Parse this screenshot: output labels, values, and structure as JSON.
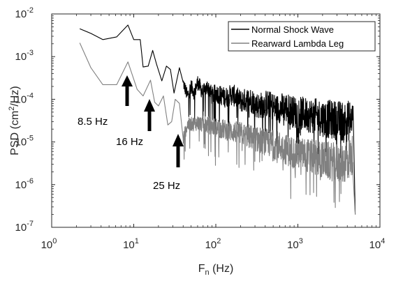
{
  "chart_data": {
    "type": "line",
    "xlabel_main": "F",
    "xlabel_sub": "n",
    "xlabel_tail": " (Hz)",
    "ylabel_main": "PSD (cm",
    "ylabel_sup": "2",
    "ylabel_tail": "/Hz)",
    "x_scale": "log",
    "y_scale": "log",
    "xlim": [
      1,
      10000
    ],
    "ylim": [
      1e-07,
      0.01
    ],
    "grid": false,
    "legend_position": "top-right",
    "x_ticks": [
      {
        "value": 1,
        "base": "10",
        "exp": "0"
      },
      {
        "value": 10,
        "base": "10",
        "exp": "1"
      },
      {
        "value": 100,
        "base": "10",
        "exp": "2"
      },
      {
        "value": 1000,
        "base": "10",
        "exp": "3"
      },
      {
        "value": 10000,
        "base": "10",
        "exp": "4"
      }
    ],
    "y_ticks": [
      {
        "value": 1e-07,
        "base": "10",
        "exp": "-7"
      },
      {
        "value": 1e-06,
        "base": "10",
        "exp": "-6"
      },
      {
        "value": 1e-05,
        "base": "10",
        "exp": "-5"
      },
      {
        "value": 0.0001,
        "base": "10",
        "exp": "-4"
      },
      {
        "value": 0.001,
        "base": "10",
        "exp": "-3"
      },
      {
        "value": 0.01,
        "base": "10",
        "exp": "-2"
      }
    ],
    "series": [
      {
        "name": "Normal Shock Wave",
        "color": "#000000",
        "points": [
          [
            2.2,
            0.0045
          ],
          [
            3,
            0.0035
          ],
          [
            4.2,
            0.0025
          ],
          [
            6.2,
            0.0029
          ],
          [
            8.5,
            0.0055
          ],
          [
            10,
            0.0025
          ],
          [
            12,
            0.0025
          ],
          [
            13,
            0.00057
          ],
          [
            15,
            0.0006
          ],
          [
            17,
            0.0014
          ],
          [
            19,
            0.00065
          ],
          [
            22,
            0.00027
          ],
          [
            25,
            0.0006
          ],
          [
            28,
            0.0005
          ],
          [
            31,
            0.00014
          ],
          [
            36,
            0.00055
          ],
          [
            40,
            0.00025
          ],
          [
            45,
            0.00012
          ],
          [
            50,
            0.0002
          ],
          [
            55,
            0.00014
          ],
          [
            60,
            0.00025
          ],
          [
            70,
            0.00014
          ],
          [
            80,
            0.0002
          ],
          [
            90,
            0.00012
          ],
          [
            100,
            0.00014
          ],
          [
            130,
            0.00011
          ],
          [
            160,
            0.00013
          ],
          [
            200,
            9e-05
          ],
          [
            260,
            0.0001
          ],
          [
            330,
            7e-05
          ],
          [
            420,
            8e-05
          ],
          [
            550,
            6e-05
          ],
          [
            700,
            6.5e-05
          ],
          [
            900,
            5e-05
          ],
          [
            1200,
            4.5e-05
          ],
          [
            1600,
            4e-05
          ],
          [
            2200,
            3.5e-05
          ],
          [
            3000,
            3.2e-05
          ],
          [
            4000,
            3e-05
          ],
          [
            4700,
            3.5e-05
          ],
          [
            5000,
            2e-07
          ]
        ]
      },
      {
        "name": "Rearward Lambda Leg",
        "color": "#808080",
        "points": [
          [
            2.2,
            0.0021
          ],
          [
            3,
            0.00055
          ],
          [
            4.2,
            0.00022
          ],
          [
            6.2,
            0.00022
          ],
          [
            8.5,
            0.00075
          ],
          [
            11,
            0.00017
          ],
          [
            13,
            0.00012
          ],
          [
            16,
            0.00028
          ],
          [
            18,
            8.5e-05
          ],
          [
            20,
            7e-05
          ],
          [
            23,
            0.00012
          ],
          [
            26,
            2.5e-05
          ],
          [
            29,
            3e-05
          ],
          [
            32,
            0.0001
          ],
          [
            36,
            8e-05
          ],
          [
            40,
            1.2e-05
          ],
          [
            45,
            2.5e-05
          ],
          [
            60,
            2.8e-05
          ],
          [
            80,
            2.5e-05
          ],
          [
            100,
            2.2e-05
          ],
          [
            150,
            1.8e-05
          ],
          [
            200,
            1.6e-05
          ],
          [
            300,
            1.2e-05
          ],
          [
            400,
            1e-05
          ],
          [
            600,
            8e-06
          ],
          [
            800,
            6e-06
          ],
          [
            1200,
            5e-06
          ],
          [
            1800,
            4e-06
          ],
          [
            2500,
            3.5e-06
          ],
          [
            3500,
            3e-06
          ],
          [
            4700,
            5e-06
          ],
          [
            5000,
            2e-07
          ]
        ]
      }
    ],
    "annotations": [
      {
        "text": "8.5 Hz",
        "x": 8.5
      },
      {
        "text": "16 Hz",
        "x": 16
      },
      {
        "text": "25 Hz",
        "x": 35
      }
    ]
  }
}
